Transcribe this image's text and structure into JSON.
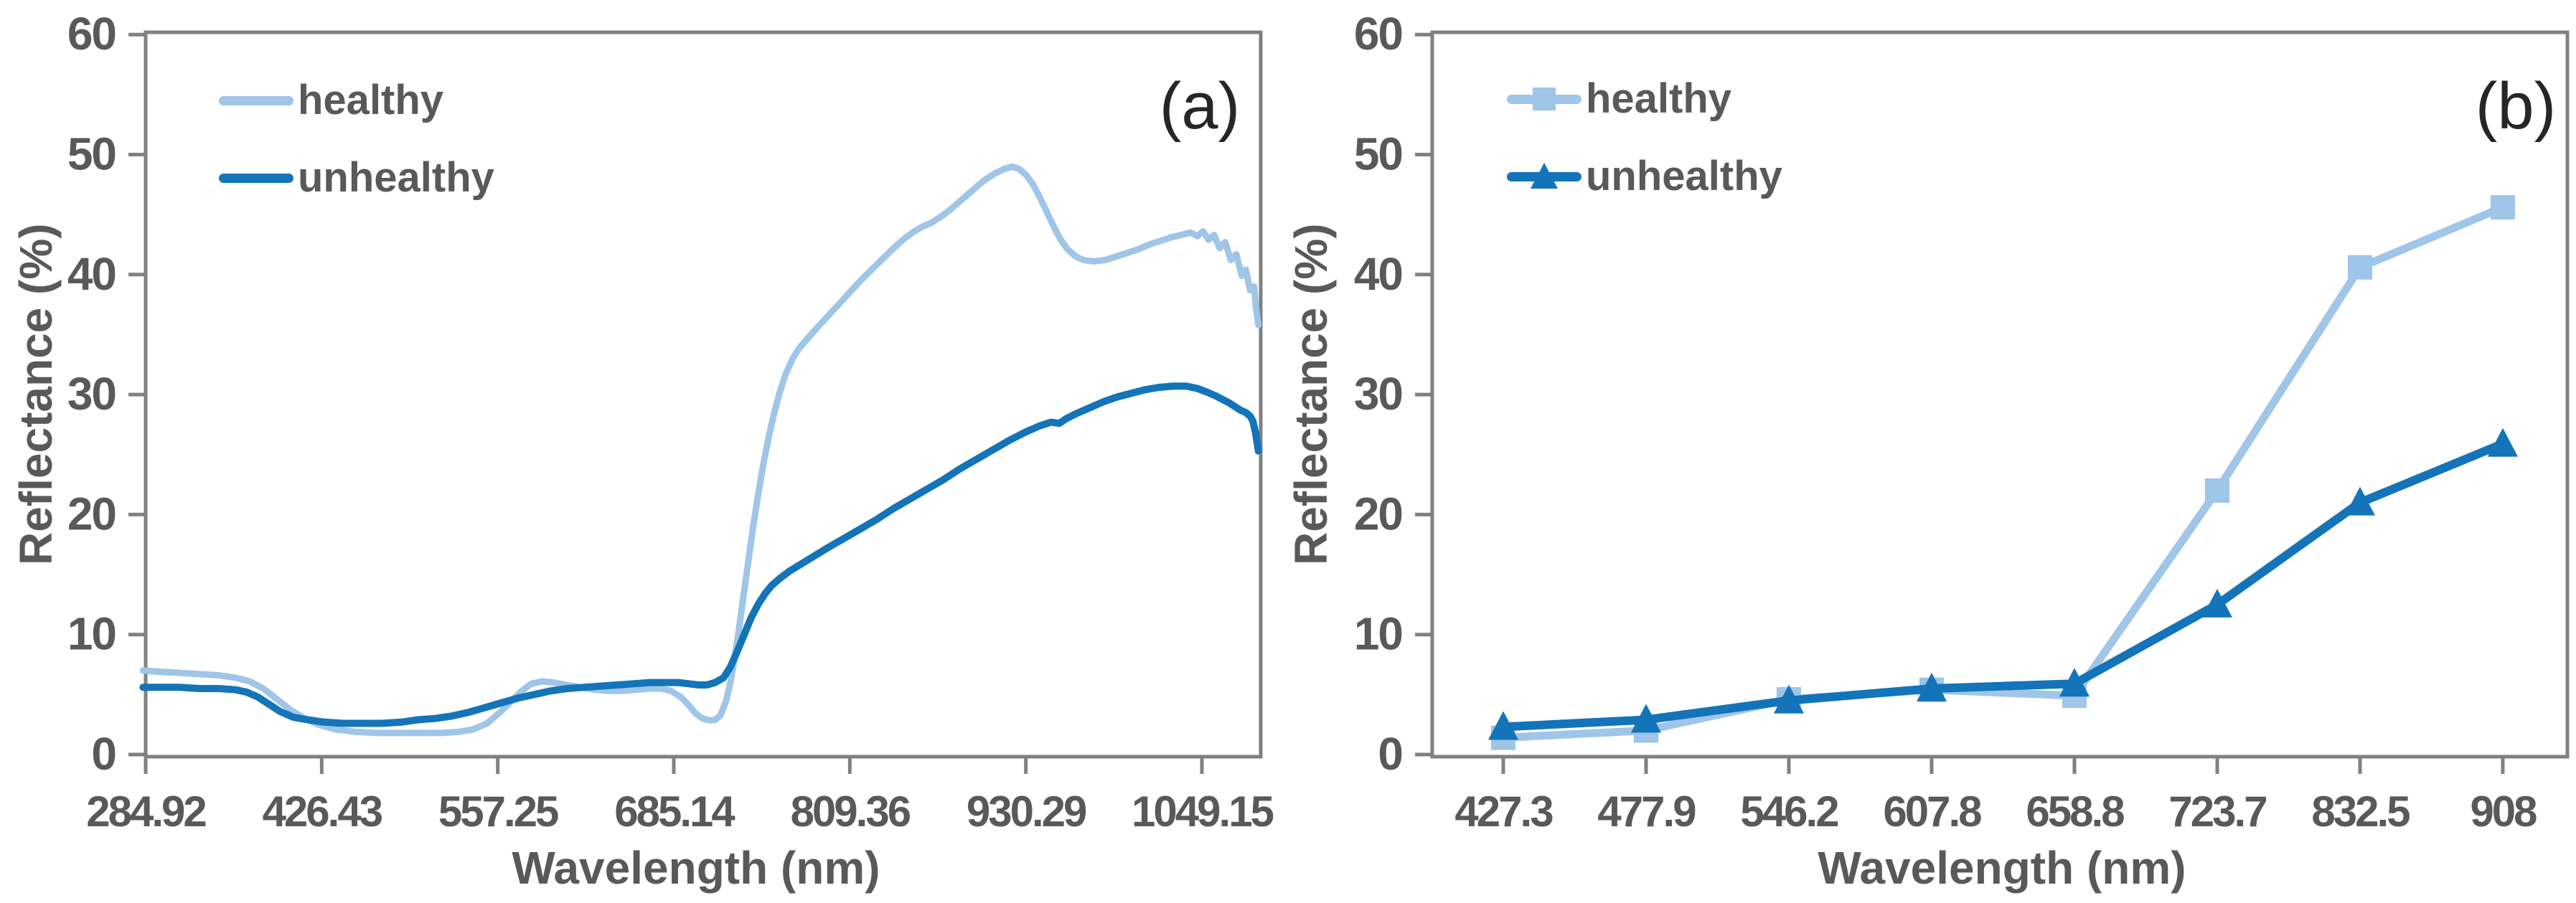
{
  "accent_colors": {
    "healthy": "#9FC5E8",
    "unhealthy": "#1374B9",
    "axis": "#808080",
    "text": "#595959"
  },
  "chart_data": [
    {
      "type": "line",
      "panel_label": "(a)",
      "title": "",
      "xlabel": "Wavelength (nm)",
      "ylabel": "Reflectance (%)",
      "ylim": [
        0,
        60
      ],
      "yticks": [
        0,
        10,
        20,
        30,
        40,
        50,
        60
      ],
      "xtick_labels": [
        "284.92",
        "426.43",
        "557.25",
        "685.14",
        "809.36",
        "930.29",
        "1049.15"
      ],
      "x_units": "nm",
      "x_data_range": [
        283,
        1090
      ],
      "grid": false,
      "legend_position": "top-left",
      "legend": [
        "healthy",
        "unhealthy"
      ],
      "series": [
        {
          "name": "healthy",
          "color": "#9FC5E8",
          "line_width": 9,
          "points": [
            [
              283,
              7.0
            ],
            [
              296,
              6.9
            ],
            [
              310,
              6.8
            ],
            [
              324,
              6.7
            ],
            [
              338,
              6.6
            ],
            [
              350,
              6.4
            ],
            [
              360,
              6.1
            ],
            [
              370,
              5.5
            ],
            [
              380,
              4.6
            ],
            [
              390,
              3.7
            ],
            [
              400,
              3.0
            ],
            [
              410,
              2.5
            ],
            [
              422,
              2.1
            ],
            [
              436,
              1.9
            ],
            [
              452,
              1.8
            ],
            [
              468,
              1.8
            ],
            [
              484,
              1.8
            ],
            [
              500,
              1.8
            ],
            [
              512,
              1.9
            ],
            [
              522,
              2.1
            ],
            [
              532,
              2.6
            ],
            [
              542,
              3.6
            ],
            [
              550,
              4.5
            ],
            [
              557,
              5.3
            ],
            [
              564,
              5.9
            ],
            [
              572,
              6.1
            ],
            [
              580,
              6.0
            ],
            [
              590,
              5.8
            ],
            [
              600,
              5.6
            ],
            [
              610,
              5.4
            ],
            [
              620,
              5.3
            ],
            [
              630,
              5.3
            ],
            [
              640,
              5.4
            ],
            [
              650,
              5.5
            ],
            [
              658,
              5.5
            ],
            [
              665,
              5.3
            ],
            [
              672,
              4.8
            ],
            [
              678,
              4.1
            ],
            [
              683,
              3.4
            ],
            [
              688,
              3.0
            ],
            [
              693,
              2.85
            ],
            [
              697,
              2.9
            ],
            [
              701,
              3.3
            ],
            [
              705,
              4.5
            ],
            [
              708,
              6.0
            ],
            [
              711,
              8.0
            ],
            [
              714,
              10.3
            ],
            [
              717,
              12.8
            ],
            [
              720,
              15.3
            ],
            [
              724,
              18.6
            ],
            [
              728,
              21.6
            ],
            [
              732,
              24.3
            ],
            [
              736,
              26.6
            ],
            [
              740,
              28.6
            ],
            [
              744,
              30.3
            ],
            [
              748,
              31.7
            ],
            [
              753,
              33.0
            ],
            [
              758,
              33.9
            ],
            [
              764,
              34.7
            ],
            [
              771,
              35.6
            ],
            [
              779,
              36.6
            ],
            [
              787,
              37.6
            ],
            [
              795,
              38.6
            ],
            [
              803,
              39.6
            ],
            [
              811,
              40.5
            ],
            [
              819,
              41.4
            ],
            [
              827,
              42.3
            ],
            [
              835,
              43.1
            ],
            [
              841,
              43.6
            ],
            [
              847,
              44.0
            ],
            [
              853,
              44.3
            ],
            [
              860,
              44.8
            ],
            [
              867,
              45.4
            ],
            [
              875,
              46.2
            ],
            [
              883,
              47.0
            ],
            [
              891,
              47.8
            ],
            [
              899,
              48.4
            ],
            [
              906,
              48.8
            ],
            [
              912,
              49.0
            ],
            [
              917,
              48.8
            ],
            [
              922,
              48.3
            ],
            [
              927,
              47.5
            ],
            [
              932,
              46.4
            ],
            [
              937,
              45.2
            ],
            [
              942,
              44.0
            ],
            [
              947,
              42.9
            ],
            [
              952,
              42.1
            ],
            [
              958,
              41.5
            ],
            [
              964,
              41.2
            ],
            [
              971,
              41.1
            ],
            [
              979,
              41.2
            ],
            [
              987,
              41.5
            ],
            [
              995,
              41.8
            ],
            [
              1003,
              42.1
            ],
            [
              1011,
              42.5
            ],
            [
              1019,
              42.8
            ],
            [
              1027,
              43.1
            ],
            [
              1034,
              43.3
            ],
            [
              1041,
              43.5
            ],
            [
              1046,
              43.2
            ],
            [
              1050,
              43.6
            ],
            [
              1054,
              42.9
            ],
            [
              1058,
              43.3
            ],
            [
              1062,
              42.2
            ],
            [
              1066,
              42.7
            ],
            [
              1070,
              41.2
            ],
            [
              1074,
              41.7
            ],
            [
              1078,
              39.9
            ],
            [
              1081,
              40.4
            ],
            [
              1084,
              38.7
            ],
            [
              1087,
              39.0
            ],
            [
              1088,
              37.5
            ],
            [
              1090,
              35.8
            ]
          ]
        },
        {
          "name": "unhealthy",
          "color": "#1374B9",
          "line_width": 10,
          "points": [
            [
              283,
              5.6
            ],
            [
              296,
              5.6
            ],
            [
              310,
              5.6
            ],
            [
              324,
              5.5
            ],
            [
              338,
              5.5
            ],
            [
              350,
              5.4
            ],
            [
              358,
              5.2
            ],
            [
              366,
              4.8
            ],
            [
              374,
              4.2
            ],
            [
              382,
              3.6
            ],
            [
              392,
              3.1
            ],
            [
              402,
              2.9
            ],
            [
              414,
              2.7
            ],
            [
              428,
              2.6
            ],
            [
              442,
              2.6
            ],
            [
              456,
              2.6
            ],
            [
              470,
              2.7
            ],
            [
              482,
              2.9
            ],
            [
              494,
              3.0
            ],
            [
              506,
              3.2
            ],
            [
              518,
              3.5
            ],
            [
              530,
              3.9
            ],
            [
              542,
              4.3
            ],
            [
              554,
              4.7
            ],
            [
              566,
              5.0
            ],
            [
              578,
              5.3
            ],
            [
              590,
              5.5
            ],
            [
              602,
              5.6
            ],
            [
              614,
              5.7
            ],
            [
              626,
              5.8
            ],
            [
              638,
              5.9
            ],
            [
              650,
              6.0
            ],
            [
              660,
              6.0
            ],
            [
              670,
              6.0
            ],
            [
              678,
              5.9
            ],
            [
              685,
              5.8
            ],
            [
              691,
              5.8
            ],
            [
              697,
              6.0
            ],
            [
              703,
              6.4
            ],
            [
              708,
              7.3
            ],
            [
              713,
              8.6
            ],
            [
              718,
              10.0
            ],
            [
              723,
              11.4
            ],
            [
              728,
              12.5
            ],
            [
              733,
              13.4
            ],
            [
              738,
              14.1
            ],
            [
              744,
              14.7
            ],
            [
              751,
              15.3
            ],
            [
              758,
              15.8
            ],
            [
              768,
              16.5
            ],
            [
              778,
              17.2
            ],
            [
              790,
              18.0
            ],
            [
              802,
              18.8
            ],
            [
              814,
              19.6
            ],
            [
              826,
              20.5
            ],
            [
              838,
              21.3
            ],
            [
              850,
              22.1
            ],
            [
              862,
              22.9
            ],
            [
              874,
              23.8
            ],
            [
              886,
              24.6
            ],
            [
              898,
              25.4
            ],
            [
              910,
              26.2
            ],
            [
              922,
              26.9
            ],
            [
              932,
              27.4
            ],
            [
              940,
              27.7
            ],
            [
              946,
              27.6
            ],
            [
              951,
              28.0
            ],
            [
              958,
              28.4
            ],
            [
              968,
              28.9
            ],
            [
              978,
              29.4
            ],
            [
              988,
              29.8
            ],
            [
              998,
              30.1
            ],
            [
              1008,
              30.4
            ],
            [
              1018,
              30.6
            ],
            [
              1028,
              30.7
            ],
            [
              1038,
              30.7
            ],
            [
              1046,
              30.5
            ],
            [
              1053,
              30.2
            ],
            [
              1059,
              29.9
            ],
            [
              1064,
              29.6
            ],
            [
              1069,
              29.3
            ],
            [
              1073,
              29.0
            ],
            [
              1077,
              28.7
            ],
            [
              1081,
              28.5
            ],
            [
              1084,
              28.2
            ],
            [
              1086,
              27.8
            ],
            [
              1088,
              26.8
            ],
            [
              1090,
              25.3
            ]
          ]
        }
      ]
    },
    {
      "type": "line",
      "panel_label": "(b)",
      "title": "",
      "xlabel": "Wavelength (nm)",
      "ylabel": "Reflectance (%)",
      "ylim": [
        0,
        60
      ],
      "yticks": [
        0,
        10,
        20,
        30,
        40,
        50,
        60
      ],
      "categories": [
        "427.3",
        "477.9",
        "546.2",
        "607.8",
        "658.8",
        "723.7",
        "832.5",
        "908"
      ],
      "grid": false,
      "legend_position": "top-left",
      "legend": [
        "healthy",
        "unhealthy"
      ],
      "series": [
        {
          "name": "healthy",
          "color": "#9FC5E8",
          "marker": "square",
          "line_width": 11,
          "values": [
            1.4,
            2.0,
            4.6,
            5.4,
            4.9,
            22.0,
            40.6,
            45.6
          ]
        },
        {
          "name": "unhealthy",
          "color": "#1374B9",
          "marker": "triangle",
          "line_width": 12,
          "values": [
            2.3,
            2.9,
            4.5,
            5.5,
            5.9,
            12.5,
            21.0,
            25.9
          ]
        }
      ]
    }
  ]
}
